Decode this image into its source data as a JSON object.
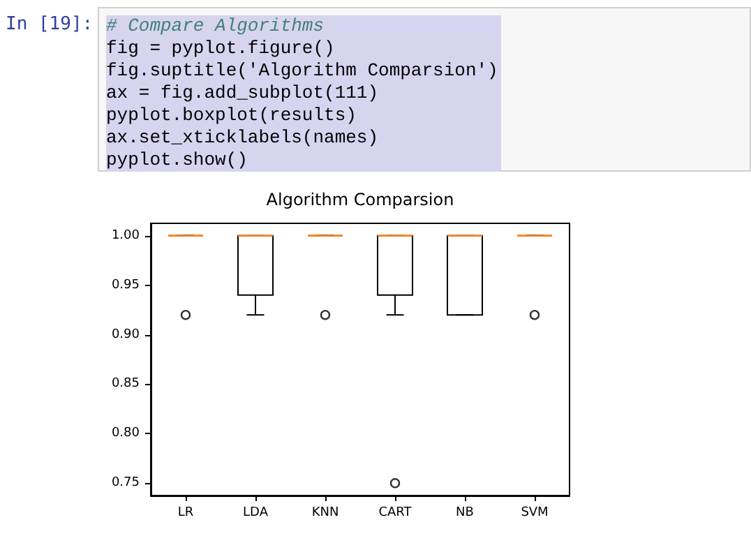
{
  "chart_data": {
    "type": "box",
    "title": "Algorithm Comparsion",
    "annotations": [
      "In [19]:",
      "# Compare Algorithms",
      "fig = pyplot.figure()",
      "fig.suptitle('Algorithm Comparsion')",
      "ax = fig.add_subplot(111)",
      "pyplot.boxplot(results)",
      "ax.set_xticklabels(names)",
      "pyplot.show()"
    ],
    "categories": [
      "LR",
      "LDA",
      "KNN",
      "CART",
      "NB",
      "SVM"
    ],
    "color": "#000000",
    "boxes": [
      {
        "low": 1,
        "q1": 1,
        "median": 1,
        "q3": 1,
        "high": 1,
        "outliers": [
          0.92
        ]
      },
      {
        "low": 0.92,
        "q1": 0.94,
        "median": 1,
        "q3": 1,
        "high": 1
      },
      {
        "low": 1,
        "q1": 1,
        "median": 1,
        "q3": 1,
        "high": 1,
        "outliers": [
          0.92
        ]
      },
      {
        "low": 0.92,
        "q1": 0.94,
        "median": 1,
        "q3": 1,
        "high": 1,
        "outliers": [
          0.75
        ]
      },
      {
        "low": 0.92,
        "q1": 0.92,
        "median": 1,
        "q3": 1,
        "high": 1
      },
      {
        "low": 1,
        "q1": 1,
        "median": 1,
        "q3": 1,
        "high": 1,
        "outliers": [
          0.92
        ]
      }
    ],
    "ylim": [
      0.7375,
      1.0125
    ],
    "yticks": [
      {
        "value": 0.75,
        "label": "0.75"
      },
      {
        "value": 0.8,
        "label": "0.80"
      },
      {
        "value": 0.85,
        "label": "0.85"
      },
      {
        "value": 0.9,
        "label": "0.90"
      },
      {
        "value": 0.95,
        "label": "0.95"
      },
      {
        "value": 1,
        "label": "1.00"
      }
    ],
    "grid": false
  }
}
